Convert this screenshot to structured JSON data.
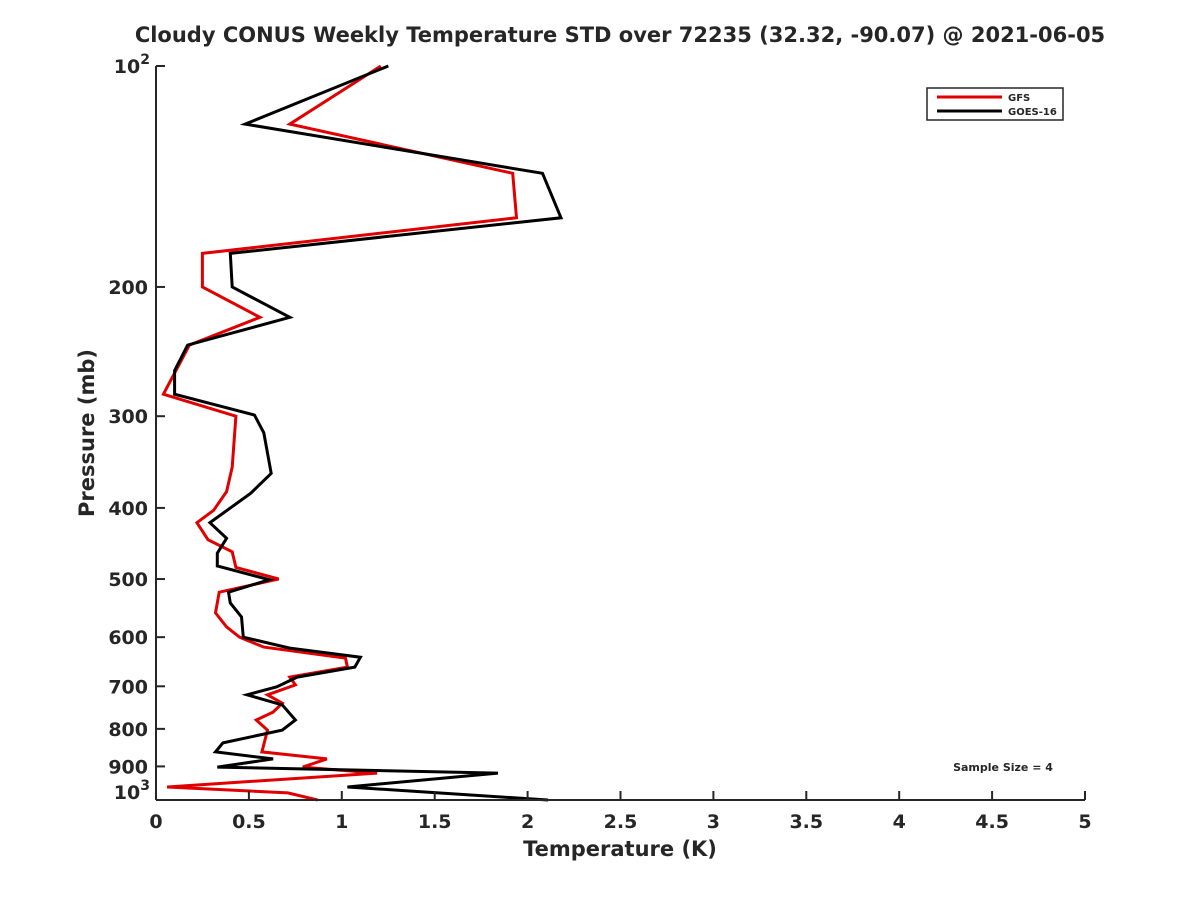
{
  "chart_data": {
    "type": "line",
    "title": "Cloudy CONUS Weekly Temperature STD over 72235 (32.32, -90.07) @ 2021-06-05",
    "xlabel": "Temperature (K)",
    "ylabel": "Pressure (mb)",
    "xlim": [
      0,
      5
    ],
    "ylim": [
      100,
      1000
    ],
    "yscale": "log",
    "yreversed": true,
    "grid": false,
    "x_ticks": [
      "0",
      "0.5",
      "1",
      "1.5",
      "2",
      "2.5",
      "3",
      "3.5",
      "4",
      "4.5",
      "5"
    ],
    "x_tick_values": [
      0,
      0.5,
      1,
      1.5,
      2,
      2.5,
      3,
      3.5,
      4,
      4.5,
      5
    ],
    "y_ticks": [
      {
        "value": 100,
        "base": "10",
        "exp": "2"
      },
      {
        "value": 200,
        "label": "200"
      },
      {
        "value": 300,
        "label": "300"
      },
      {
        "value": 400,
        "label": "400"
      },
      {
        "value": 500,
        "label": "500"
      },
      {
        "value": 600,
        "label": "600"
      },
      {
        "value": 700,
        "label": "700"
      },
      {
        "value": 800,
        "label": "800"
      },
      {
        "value": 900,
        "label": "900"
      },
      {
        "value": 1000,
        "base": "10",
        "exp": "3"
      }
    ],
    "legend_position": "top-right",
    "annotation": "Sample Size = 4",
    "series": [
      {
        "name": "GFS",
        "color": "#e00000",
        "temperature": [
          1.21,
          0.72,
          1.92,
          1.94,
          0.25,
          0.25,
          0.56,
          0.18,
          0.04,
          0.43,
          0.41,
          0.38,
          0.31,
          0.22,
          0.28,
          0.41,
          0.43,
          0.66,
          0.34,
          0.32,
          0.38,
          0.45,
          0.58,
          1.02,
          1.03,
          0.72,
          0.75,
          0.6,
          0.68,
          0.63,
          0.54,
          0.6,
          0.57,
          0.92,
          0.79,
          1.19,
          0.06,
          0.71,
          0.87
        ],
        "pressure": [
          100,
          120,
          140,
          161,
          180,
          200,
          220,
          240,
          280,
          300,
          352,
          380,
          403,
          419,
          442,
          459,
          482,
          500,
          521,
          556,
          581,
          600,
          619,
          641,
          659,
          680,
          697,
          719,
          738,
          759,
          778,
          803,
          860,
          879,
          902,
          919,
          960,
          978,
          1000
        ]
      },
      {
        "name": "GOES-16",
        "color": "#000000",
        "temperature": [
          1.25,
          0.48,
          2.08,
          2.18,
          0.4,
          0.41,
          0.72,
          0.17,
          0.1,
          0.1,
          0.53,
          0.58,
          0.62,
          0.51,
          0.29,
          0.38,
          0.33,
          0.33,
          0.61,
          0.39,
          0.4,
          0.46,
          0.47,
          0.72,
          1.1,
          1.07,
          0.76,
          0.65,
          0.49,
          0.68,
          0.75,
          0.68,
          0.36,
          0.32,
          0.63,
          0.33,
          1.84,
          1.03,
          2.11
        ],
        "pressure": [
          100,
          120,
          140,
          161,
          180,
          200,
          220,
          240,
          260,
          280,
          299,
          316,
          359,
          382,
          419,
          440,
          461,
          480,
          501,
          521,
          539,
          563,
          600,
          621,
          639,
          659,
          680,
          701,
          719,
          742,
          778,
          803,
          836,
          860,
          879,
          902,
          919,
          960,
          1000
        ]
      }
    ]
  }
}
